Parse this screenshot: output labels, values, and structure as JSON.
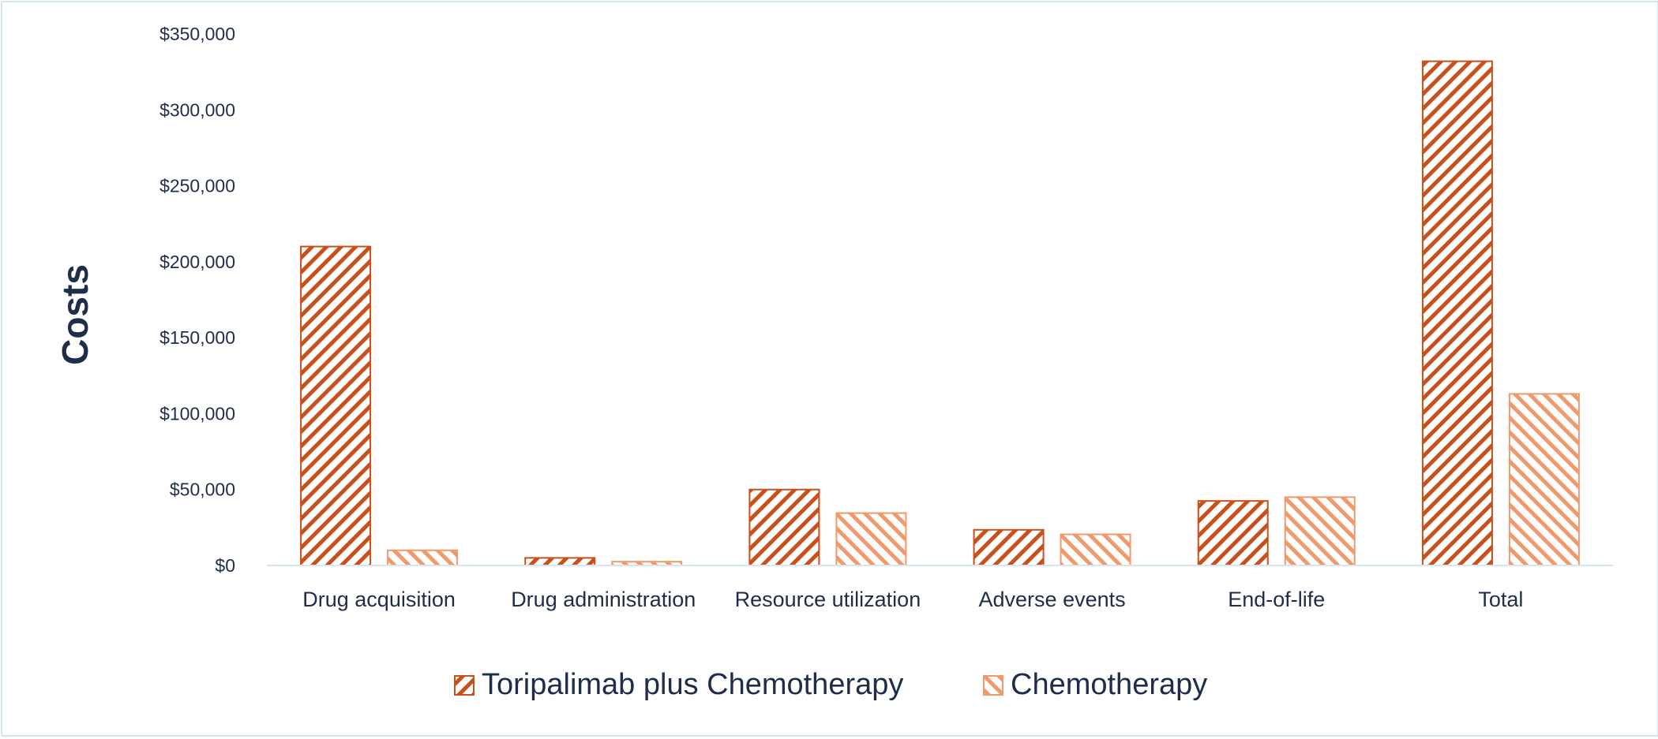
{
  "chart_data": {
    "type": "bar",
    "title": "",
    "xlabel": "",
    "ylabel": "Costs",
    "ylim": [
      0,
      350000
    ],
    "yticks": [
      0,
      50000,
      100000,
      150000,
      200000,
      250000,
      300000,
      350000
    ],
    "ytick_labels": [
      "$0",
      "$50,000",
      "$100,000",
      "$150,000",
      "$200,000",
      "$250,000",
      "$300,000",
      "$350,000"
    ],
    "categories": [
      "Drug acquisition",
      "Drug administration",
      "Resource utilization",
      "Adverse events",
      "End-of-life",
      "Total"
    ],
    "series": [
      {
        "name": "Toripalimab plus Chemotherapy",
        "values": [
          210000,
          5000,
          50000,
          23500,
          42500,
          332000
        ]
      },
      {
        "name": "Chemotherapy",
        "values": [
          10000,
          2500,
          34500,
          20500,
          45000,
          113000
        ]
      }
    ],
    "grid": false,
    "legend_position": "bottom",
    "colors": {
      "series1_stroke": "#c8501a",
      "series2_stroke": "#f09a6c",
      "axis": "#d6e6ee",
      "text": "#1f2d4a"
    }
  }
}
